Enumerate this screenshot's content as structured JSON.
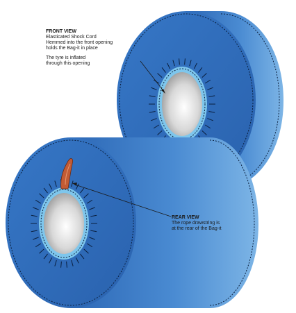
{
  "front_view": {
    "title": "FRONT VIEW",
    "lines": [
      "Elasticated Shock Cord",
      "Hemmed into the front opening",
      "holds the Bag-it in place"
    ],
    "note_lines": [
      "The tyre is inflated",
      "through this opening"
    ]
  },
  "rear_view": {
    "title": "REAR VIEW",
    "lines": [
      "The rope drawstring is",
      "at the rear of the Bag-it"
    ]
  },
  "colors": {
    "bag_blue": "#2f6fc0",
    "bag_blue_dark": "#1f54a0",
    "bag_side_light": "#5fa0dc",
    "shock_cord": "#7ec6ec",
    "drawstring": "#c25b35",
    "stitch": "#0a1f3e"
  }
}
